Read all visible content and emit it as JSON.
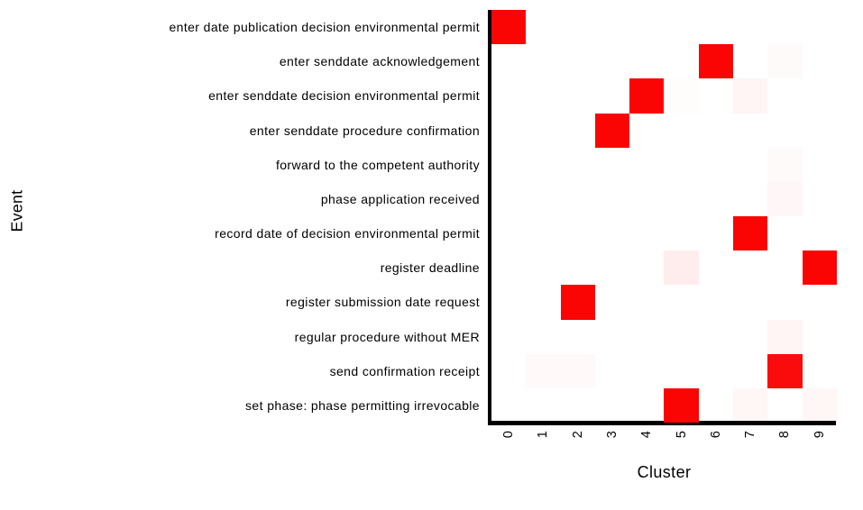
{
  "chart_data": {
    "type": "heatmap",
    "title": "",
    "xlabel": "Cluster",
    "ylabel": "Event",
    "legend": "none",
    "grid": false,
    "colormap": {
      "min_color": "#ffffff",
      "max_color": "#fa0404"
    },
    "value_range": [
      0,
      1
    ],
    "x_categories": [
      "0",
      "1",
      "2",
      "3",
      "4",
      "5",
      "6",
      "7",
      "8",
      "9"
    ],
    "y_categories": [
      "enter date publication decision environmental permit",
      "enter senddate acknowledgement",
      "enter senddate decision environmental permit",
      "enter senddate procedure confirmation",
      "forward to the competent authority",
      "phase application received",
      "record date of decision environmental permit",
      "register deadline",
      "register submission date request",
      "regular procedure without MER",
      "send confirmation receipt",
      "set phase: phase permitting irrevocable"
    ],
    "values": [
      [
        1,
        0,
        0,
        0,
        0,
        0,
        0,
        0,
        0,
        0
      ],
      [
        0,
        0,
        0,
        0,
        0,
        0,
        1,
        0,
        0.02,
        0
      ],
      [
        0,
        0,
        0,
        0,
        1,
        0.01,
        0,
        0.04,
        0,
        0
      ],
      [
        0,
        0,
        0,
        1,
        0,
        0,
        0,
        0,
        0,
        0
      ],
      [
        0,
        0,
        0,
        0,
        0,
        0,
        0,
        0,
        0.02,
        0
      ],
      [
        0,
        0,
        0,
        0,
        0,
        0,
        0,
        0,
        0.03,
        0
      ],
      [
        0,
        0,
        0,
        0,
        0,
        0,
        0,
        1,
        0,
        0
      ],
      [
        0,
        0,
        0,
        0,
        0,
        0.07,
        0,
        0,
        0,
        1
      ],
      [
        0,
        0,
        1,
        0,
        0,
        0,
        0,
        0,
        0,
        0
      ],
      [
        0,
        0,
        0,
        0,
        0,
        0,
        0,
        0,
        0.04,
        0
      ],
      [
        0,
        0.025,
        0.025,
        0,
        0,
        0,
        0,
        0,
        0.97,
        0
      ],
      [
        0,
        0,
        0,
        0,
        0,
        1,
        0,
        0.035,
        0,
        0.035
      ]
    ]
  }
}
